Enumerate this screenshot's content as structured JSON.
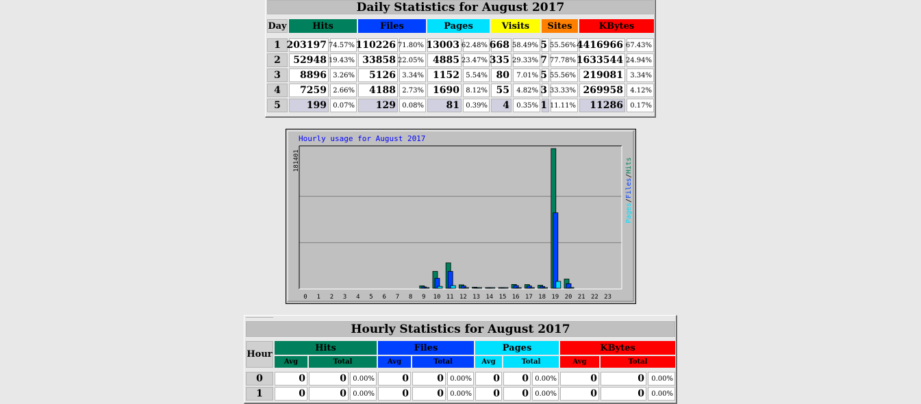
{
  "daily": {
    "title": "Daily Statistics for August 2017",
    "headers": {
      "day": "Day",
      "hits": "Hits",
      "files": "Files",
      "pages": "Pages",
      "visits": "Visits",
      "sites": "Sites",
      "kbytes": "KBytes"
    },
    "rows": [
      {
        "day": "1",
        "hits": "203197",
        "hits_pct": "74.57%",
        "files": "110226",
        "files_pct": "71.80%",
        "pages": "13003",
        "pages_pct": "62.48%",
        "visits": "668",
        "visits_pct": "58.49%",
        "sites": "5",
        "sites_pct": "55.56%",
        "kbytes": "4416966",
        "kbytes_pct": "67.43%"
      },
      {
        "day": "2",
        "hits": "52948",
        "hits_pct": "19.43%",
        "files": "33858",
        "files_pct": "22.05%",
        "pages": "4885",
        "pages_pct": "23.47%",
        "visits": "335",
        "visits_pct": "29.33%",
        "sites": "7",
        "sites_pct": "77.78%",
        "kbytes": "1633544",
        "kbytes_pct": "24.94%"
      },
      {
        "day": "3",
        "hits": "8896",
        "hits_pct": "3.26%",
        "files": "5126",
        "files_pct": "3.34%",
        "pages": "1152",
        "pages_pct": "5.54%",
        "visits": "80",
        "visits_pct": "7.01%",
        "sites": "5",
        "sites_pct": "55.56%",
        "kbytes": "219081",
        "kbytes_pct": "3.34%"
      },
      {
        "day": "4",
        "hits": "7259",
        "hits_pct": "2.66%",
        "files": "4188",
        "files_pct": "2.73%",
        "pages": "1690",
        "pages_pct": "8.12%",
        "visits": "55",
        "visits_pct": "4.82%",
        "sites": "3",
        "sites_pct": "33.33%",
        "kbytes": "269958",
        "kbytes_pct": "4.12%"
      },
      {
        "day": "5",
        "hits": "199",
        "hits_pct": "0.07%",
        "files": "129",
        "files_pct": "0.08%",
        "pages": "81",
        "pages_pct": "0.39%",
        "visits": "4",
        "visits_pct": "0.35%",
        "sites": "1",
        "sites_pct": "11.11%",
        "kbytes": "11286",
        "kbytes_pct": "0.17%"
      }
    ]
  },
  "chart_data": {
    "type": "bar",
    "title": "Hourly usage for August 2017",
    "ymax_label": "181401",
    "ylim": [
      0,
      181401
    ],
    "categories": [
      "0",
      "1",
      "2",
      "3",
      "4",
      "5",
      "6",
      "7",
      "8",
      "9",
      "10",
      "11",
      "12",
      "13",
      "14",
      "15",
      "16",
      "17",
      "18",
      "19",
      "20",
      "21",
      "22",
      "23"
    ],
    "series": [
      {
        "name": "Hits",
        "color": "#00805c",
        "values": [
          0,
          0,
          0,
          0,
          0,
          0,
          0,
          0,
          0,
          3200,
          22000,
          33000,
          4500,
          1400,
          800,
          900,
          5000,
          4800,
          4000,
          181401,
          12000,
          0,
          0,
          0
        ]
      },
      {
        "name": "Files",
        "color": "#0040ff",
        "values": [
          0,
          0,
          0,
          0,
          0,
          0,
          0,
          0,
          0,
          1800,
          13000,
          22000,
          3000,
          800,
          500,
          600,
          3500,
          3000,
          2400,
          98000,
          6000,
          0,
          0,
          0
        ]
      },
      {
        "name": "Pages",
        "color": "#00e0ff",
        "values": [
          0,
          0,
          0,
          0,
          0,
          0,
          0,
          0,
          0,
          500,
          2500,
          3500,
          800,
          300,
          200,
          200,
          800,
          700,
          500,
          9000,
          1000,
          0,
          0,
          0
        ]
      }
    ],
    "legend_vertical": {
      "pages": "Pages",
      "files": "Files",
      "hits": "Hits",
      "sep": "/"
    },
    "grid": true
  },
  "hourly": {
    "title": "Hourly Statistics for August 2017",
    "headers": {
      "hour": "Hour",
      "hits": "Hits",
      "files": "Files",
      "pages": "Pages",
      "kbytes": "KBytes",
      "avg": "Avg",
      "total": "Total"
    },
    "rows": [
      {
        "hour": "0",
        "hits_avg": "0",
        "hits_total": "0",
        "hits_pct": "0.00%",
        "files_avg": "0",
        "files_total": "0",
        "files_pct": "0.00%",
        "pages_avg": "0",
        "pages_total": "0",
        "pages_pct": "0.00%",
        "kbytes_avg": "0",
        "kbytes_total": "0",
        "kbytes_pct": "0.00%"
      },
      {
        "hour": "1",
        "hits_avg": "0",
        "hits_total": "0",
        "hits_pct": "0.00%",
        "files_avg": "0",
        "files_total": "0",
        "files_pct": "0.00%",
        "pages_avg": "0",
        "pages_total": "0",
        "pages_pct": "0.00%",
        "kbytes_avg": "0",
        "kbytes_total": "0",
        "kbytes_pct": "0.00%"
      }
    ]
  },
  "colors": {
    "hits": "#00805c",
    "files": "#0040ff",
    "pages": "#00e0ff",
    "visits": "#ffff00",
    "sites": "#ff8000",
    "kbytes": "#ff0000"
  }
}
